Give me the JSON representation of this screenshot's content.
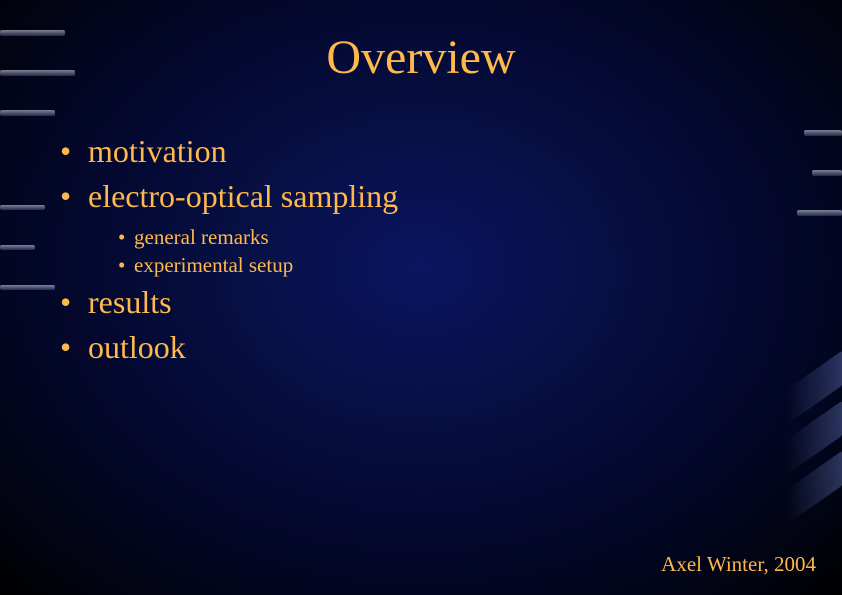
{
  "colors": {
    "accent": "#ffb84b",
    "bg_center": "#0a1560",
    "bg_edge": "#000000"
  },
  "typography": {
    "family": "Times New Roman",
    "title_fontsize": 48,
    "main_fontsize": 32,
    "sub_fontsize": 21,
    "footer_fontsize": 21
  },
  "title": "Overview",
  "bullets": {
    "main": [
      "motivation",
      "electro-optical sampling",
      "results",
      "outlook"
    ],
    "sub_after_index": 1,
    "sub": [
      "general remarks",
      "experimental setup"
    ]
  },
  "footer": "Axel Winter, 2004"
}
